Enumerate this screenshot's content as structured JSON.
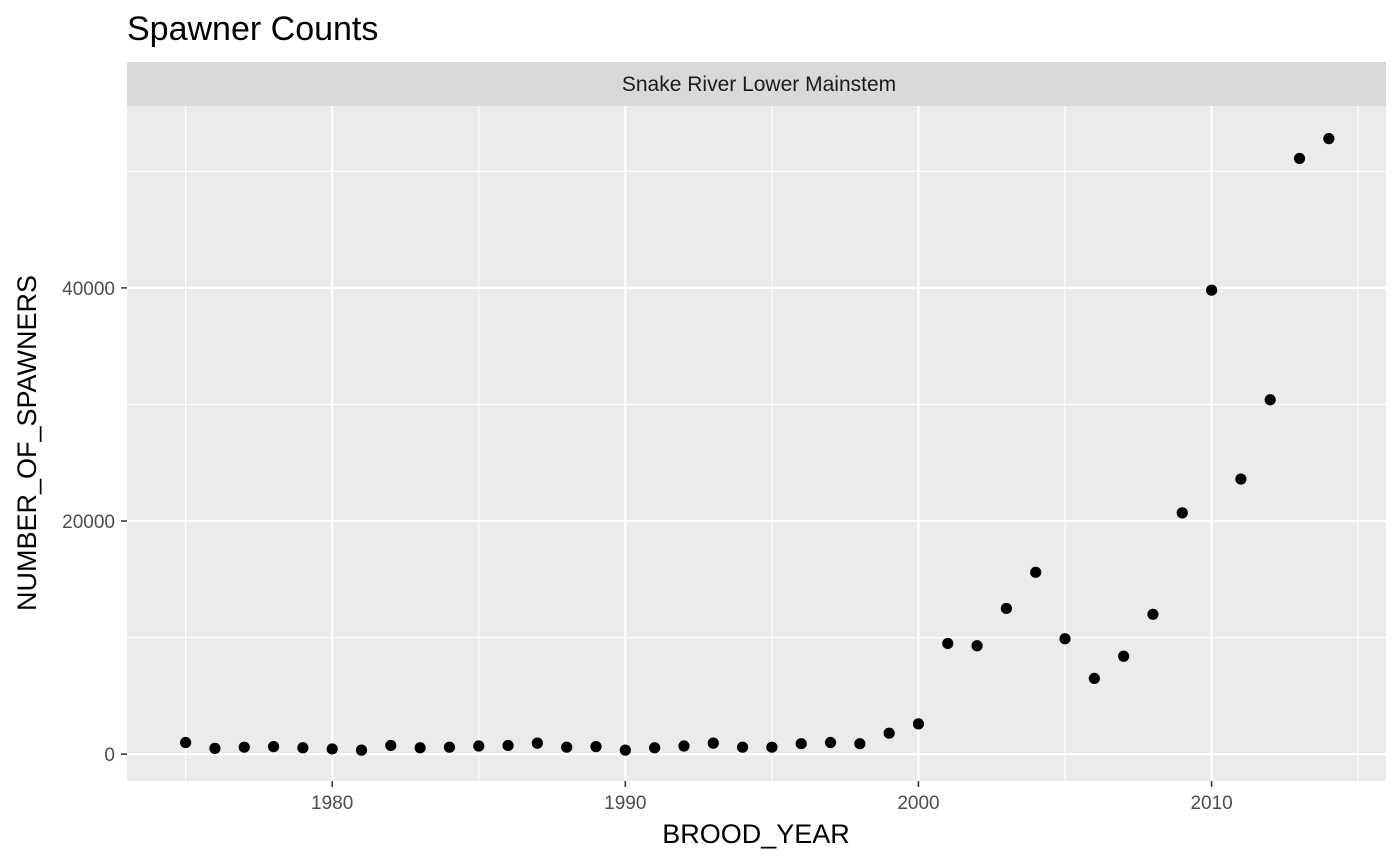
{
  "chart_data": {
    "type": "scatter",
    "title": "Spawner Counts",
    "facet_label": "Snake River Lower Mainstem",
    "xlabel": "BROOD_YEAR",
    "ylabel": "NUMBER_OF_SPAWNERS",
    "xlim": [
      1973.0,
      2015.95
    ],
    "ylim": [
      -2300,
      55600
    ],
    "x_ticks": [
      1980,
      1990,
      2000,
      2010
    ],
    "x_tick_labels": [
      "1980",
      "1990",
      "2000",
      "2010"
    ],
    "y_ticks": [
      0,
      20000,
      40000
    ],
    "y_tick_labels": [
      "0",
      "20000",
      "40000"
    ],
    "grid": true,
    "colors": {
      "panel_bg": "#ebebeb",
      "strip_bg": "#d9d9d9",
      "grid": "#ffffff",
      "point": "#000000"
    },
    "series": [
      {
        "name": "Snake River Lower Mainstem",
        "x": [
          1975,
          1976,
          1977,
          1978,
          1979,
          1980,
          1981,
          1982,
          1983,
          1984,
          1985,
          1986,
          1987,
          1988,
          1989,
          1990,
          1991,
          1992,
          1993,
          1994,
          1995,
          1996,
          1997,
          1998,
          1999,
          2000,
          2001,
          2002,
          2003,
          2004,
          2005,
          2006,
          2007,
          2008,
          2009,
          2010,
          2011,
          2012,
          2013,
          2014
        ],
        "y": [
          1000,
          500,
          600,
          650,
          550,
          450,
          350,
          750,
          550,
          600,
          700,
          750,
          950,
          600,
          650,
          350,
          550,
          700,
          950,
          600,
          600,
          900,
          1000,
          900,
          1800,
          2600,
          9500,
          9300,
          12500,
          15600,
          9900,
          6500,
          8400,
          12000,
          20700,
          39800,
          23600,
          30400,
          51100,
          52800
        ]
      }
    ]
  }
}
